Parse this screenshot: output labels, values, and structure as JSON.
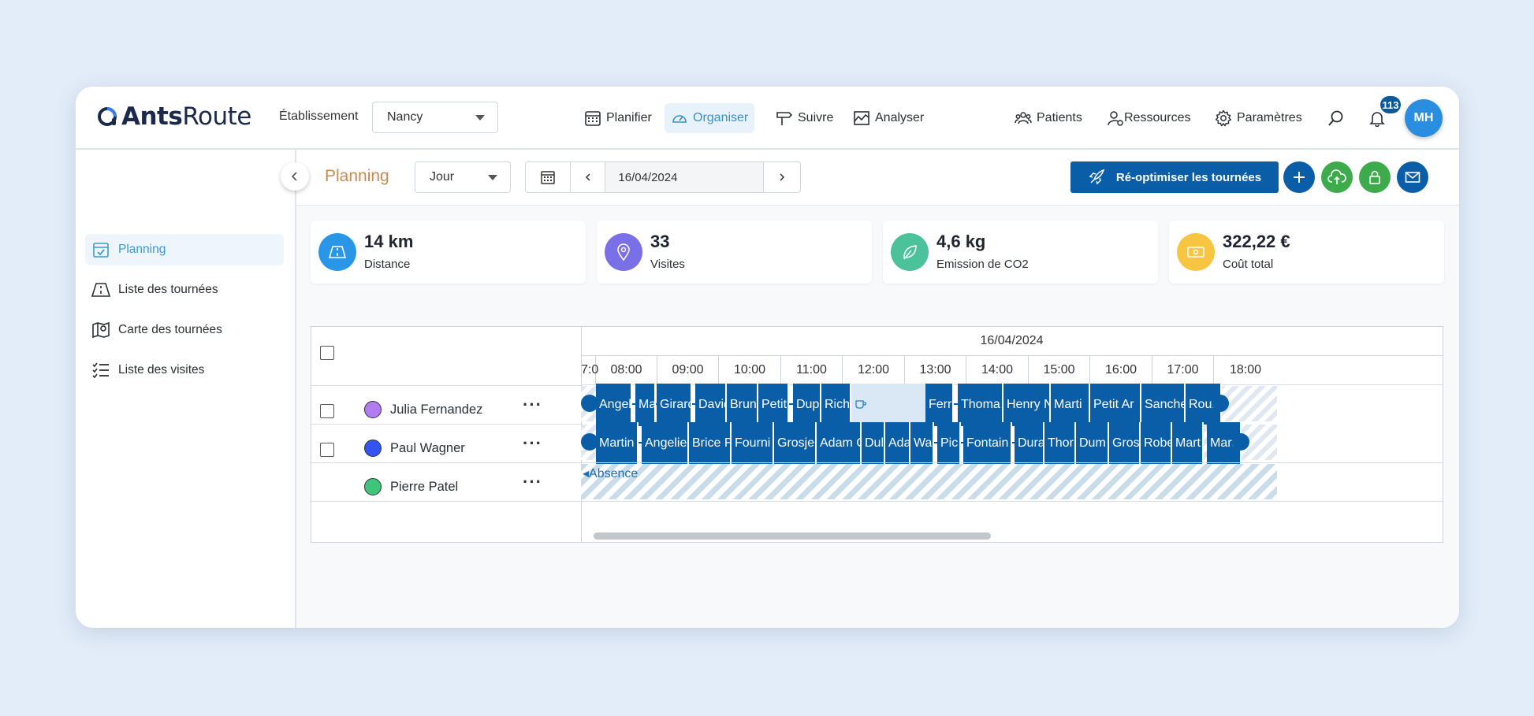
{
  "app": {
    "name_bold": "Ants",
    "name_rest": "Route"
  },
  "header": {
    "establishment_label": "Établissement",
    "establishment_value": "Nancy",
    "nav": [
      {
        "label": "Planifier",
        "icon": "calendar-grid-icon"
      },
      {
        "label": "Organiser",
        "icon": "gauge-icon",
        "active": true
      },
      {
        "label": "Suivre",
        "icon": "signpost-icon"
      },
      {
        "label": "Analyser",
        "icon": "chart-area-icon"
      }
    ],
    "right_nav": [
      {
        "label": "Patients",
        "icon": "group-icon"
      },
      {
        "label": "Ressources",
        "icon": "user-gear-icon"
      },
      {
        "label": "Paramètres",
        "icon": "gear-icon"
      }
    ],
    "notification_count": "113",
    "avatar_initials": "MH"
  },
  "sidebar": {
    "items": [
      {
        "label": "Planning",
        "icon": "calendar-check-icon",
        "active": true
      },
      {
        "label": "Liste des tournées",
        "icon": "road-icon"
      },
      {
        "label": "Carte des tournées",
        "icon": "map-pin-icon"
      },
      {
        "label": "Liste des visites",
        "icon": "checklist-icon"
      }
    ]
  },
  "toolbar": {
    "title": "Planning",
    "view_mode": "Jour",
    "date": "16/04/2024",
    "reoptimize_label": "Ré-optimiser les tournées",
    "colors": {
      "primary": "#0a5ea8",
      "green": "#3daa4c",
      "mail": "#0a5ea8"
    }
  },
  "kpis": [
    {
      "value": "14 km",
      "label": "Distance",
      "color": "#2a96e8",
      "icon": "road-icon"
    },
    {
      "value": "33",
      "label": "Visites",
      "color": "#7b6fe8",
      "icon": "pin-icon"
    },
    {
      "value": "4,6 kg",
      "label": "Emission de CO2",
      "color": "#4cc29a",
      "icon": "leaf-icon"
    },
    {
      "value": "322,22 €",
      "label": "Coût total",
      "color": "#f8c542",
      "icon": "money-icon"
    }
  ],
  "gantt": {
    "date": "16/04/2024",
    "hours": [
      "7:0",
      "08:00",
      "09:00",
      "10:00",
      "11:00",
      "12:00",
      "13:00",
      "14:00",
      "15:00",
      "16:00",
      "17:00",
      "18:00"
    ],
    "resources": [
      {
        "name": "Julia Fernandez",
        "color": "#b07cf0",
        "visits": [
          "Angeli",
          "Ma",
          "Girard",
          "David",
          "Brun",
          "Petit",
          "Dup",
          "Rich",
          "Ferr",
          "Thoma",
          "Henry N",
          "Marti",
          "Petit Ar",
          "Sanche",
          "Roux"
        ]
      },
      {
        "name": "Paul Wagner",
        "color": "#3354f0",
        "visits": [
          "Martin",
          "Angelie",
          "Brice F",
          "Fourni",
          "Grosje",
          "Adam C",
          "Dul",
          "Ada",
          "Wa",
          "Pic",
          "Fontain",
          "Dura",
          "Thor",
          "Dum",
          "Gros",
          "Robe",
          "Mart",
          "Marti"
        ]
      },
      {
        "name": "Pierre Patel",
        "color": "#3fc47c",
        "absence_label": "Absence"
      }
    ]
  }
}
